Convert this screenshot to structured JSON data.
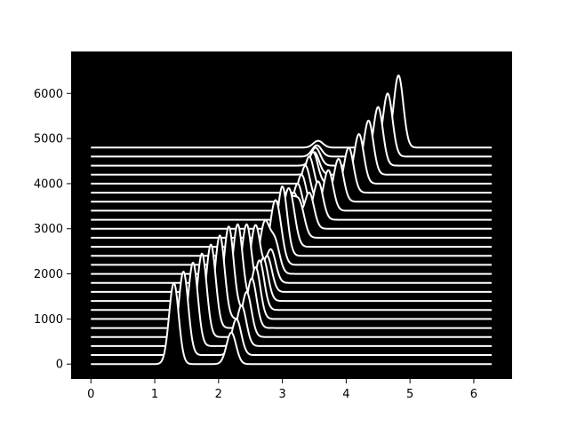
{
  "chart_data": {
    "type": "line",
    "title": "",
    "xlabel": "",
    "ylabel": "",
    "xlim": [
      -0.31,
      6.6
    ],
    "ylim": [
      -330,
      6930
    ],
    "x_ticks": [
      0,
      1,
      2,
      3,
      4,
      5,
      6
    ],
    "y_ticks": [
      0,
      1000,
      2000,
      3000,
      4000,
      5000,
      6000
    ],
    "x_tick_labels": [
      "0",
      "1",
      "2",
      "3",
      "4",
      "5",
      "6"
    ],
    "y_tick_labels": [
      "0",
      "1000",
      "2000",
      "3000",
      "4000",
      "5000",
      "6000"
    ],
    "x_range": [
      0,
      6.28
    ],
    "series_offset_step": 200,
    "series_count": 25,
    "peak_a": {
      "centers": [
        1.3,
        1.45,
        1.6,
        1.74,
        1.88,
        2.02,
        2.16,
        2.3,
        2.44,
        2.58,
        2.72,
        2.86,
        3.0,
        3.14,
        3.27,
        3.42,
        3.56,
        3.72,
        3.88,
        4.04,
        4.2,
        4.35,
        4.5,
        4.65,
        4.82
      ],
      "heights": [
        1800,
        1850,
        1850,
        1850,
        1850,
        1850,
        1850,
        1700,
        1500,
        1280,
        1100,
        930,
        800,
        740,
        740,
        800,
        850,
        900,
        950,
        1000,
        1100,
        1200,
        1300,
        1400,
        1600
      ]
    },
    "peak_b": {
      "centers": [
        2.2,
        2.28,
        2.36,
        2.44,
        2.52,
        2.58,
        2.64,
        2.7,
        2.76,
        2.82,
        2.88,
        2.94,
        3.0,
        3.06,
        3.12,
        3.18,
        3.24,
        3.3,
        3.36,
        3.42,
        3.48,
        3.5,
        3.52,
        3.54,
        3.56
      ],
      "heights": [
        700,
        800,
        900,
        1000,
        1100,
        1150,
        1100,
        950,
        800,
        740,
        720,
        720,
        740,
        760,
        780,
        800,
        800,
        800,
        800,
        800,
        700,
        500,
        400,
        250,
        150
      ]
    },
    "background_color": "#000000",
    "line_color": "#ffffff",
    "grid": false,
    "legend": "none"
  }
}
